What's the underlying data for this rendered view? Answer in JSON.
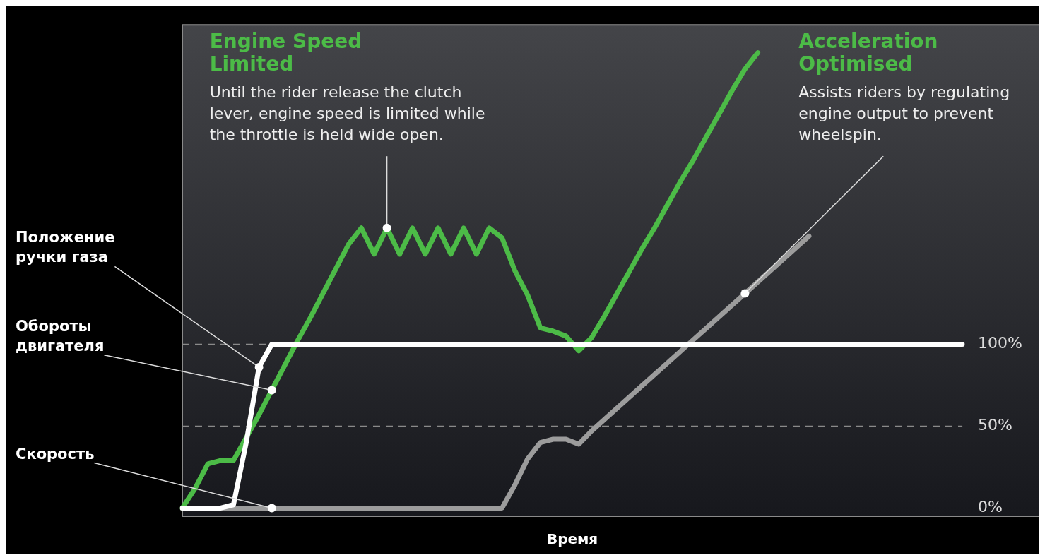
{
  "chart_data": {
    "type": "line",
    "xlabel": "Время",
    "categories": [
      null,
      null,
      null,
      null,
      null,
      null,
      null,
      null,
      null,
      null,
      null,
      null,
      null,
      null,
      null,
      null,
      null,
      null,
      null,
      null,
      null,
      null,
      null,
      null,
      null,
      null,
      null,
      null,
      null,
      null,
      null,
      null,
      null,
      null,
      null,
      null,
      null,
      null,
      null,
      null,
      null,
      null,
      null,
      null,
      null,
      null,
      null,
      null,
      null,
      null,
      null,
      null,
      null,
      null,
      null,
      null,
      null,
      null,
      null,
      null,
      null,
      null
    ],
    "series": [
      {
        "name": "Положение ручки газа",
        "color": "#ffffff",
        "values": [
          0,
          0,
          0,
          0,
          2,
          40,
          86,
          100,
          100,
          100,
          100,
          100,
          100,
          100,
          100,
          100,
          100,
          100,
          100,
          100,
          100,
          100,
          100,
          100,
          100,
          100,
          100,
          100,
          100,
          100,
          100,
          100,
          100,
          100,
          100,
          100,
          100,
          100,
          100,
          100,
          100,
          100,
          100,
          100,
          100,
          100,
          100,
          100,
          100,
          100,
          100,
          100,
          100,
          100,
          100,
          100,
          100,
          100,
          100,
          100,
          100,
          100
        ]
      },
      {
        "name": "Обороты двигателя",
        "color": "#4cbb47",
        "values": [
          0,
          12,
          27,
          29,
          29,
          43,
          57,
          72,
          87,
          102,
          116,
          131,
          146,
          161,
          171,
          155,
          171,
          155,
          171,
          155,
          171,
          155,
          171,
          155,
          171,
          165,
          145,
          130,
          110,
          108,
          105,
          96,
          104,
          117,
          131,
          145,
          159,
          172,
          186,
          200,
          213,
          227,
          241,
          255,
          268,
          278,
          null,
          null,
          null,
          null,
          null,
          null,
          null,
          null,
          null,
          null,
          null,
          null,
          null,
          null,
          null,
          null
        ]
      },
      {
        "name": "Скорость",
        "color": "#9c9c9c",
        "values": [
          0,
          0,
          0,
          0,
          0,
          0,
          0,
          0,
          0,
          0,
          0,
          0,
          0,
          0,
          0,
          0,
          0,
          0,
          0,
          0,
          0,
          0,
          0,
          0,
          0,
          0,
          14,
          30,
          40,
          42,
          42,
          39,
          47,
          54,
          61,
          68,
          75,
          82,
          89,
          96,
          103,
          110,
          117,
          124,
          131,
          138,
          145,
          152,
          159,
          166,
          null,
          null,
          null,
          null,
          null,
          null,
          null,
          null,
          null,
          null,
          null,
          null
        ]
      }
    ],
    "ylim": [
      -5,
      295
    ],
    "yticks": [
      {
        "value": 0,
        "label": "0%"
      },
      {
        "value": 50,
        "label": "50%"
      },
      {
        "value": 100,
        "label": "100%"
      }
    ],
    "tick_labels": "y",
    "ref_lines": [
      {
        "axis": "y",
        "value": 100,
        "line_style": "dashed",
        "color": "#8a8a8a"
      },
      {
        "axis": "y",
        "value": 50,
        "line_style": "dashed",
        "color": "#8a8a8a"
      }
    ],
    "annotations": [
      "Engine Speed Limited",
      "Until the rider release the clutch lever, engine speed is limited while the throttle is held wide open.",
      "Acceleration Optimised",
      "Assists riders by regulating engine output to prevent wheelspin."
    ]
  }
}
